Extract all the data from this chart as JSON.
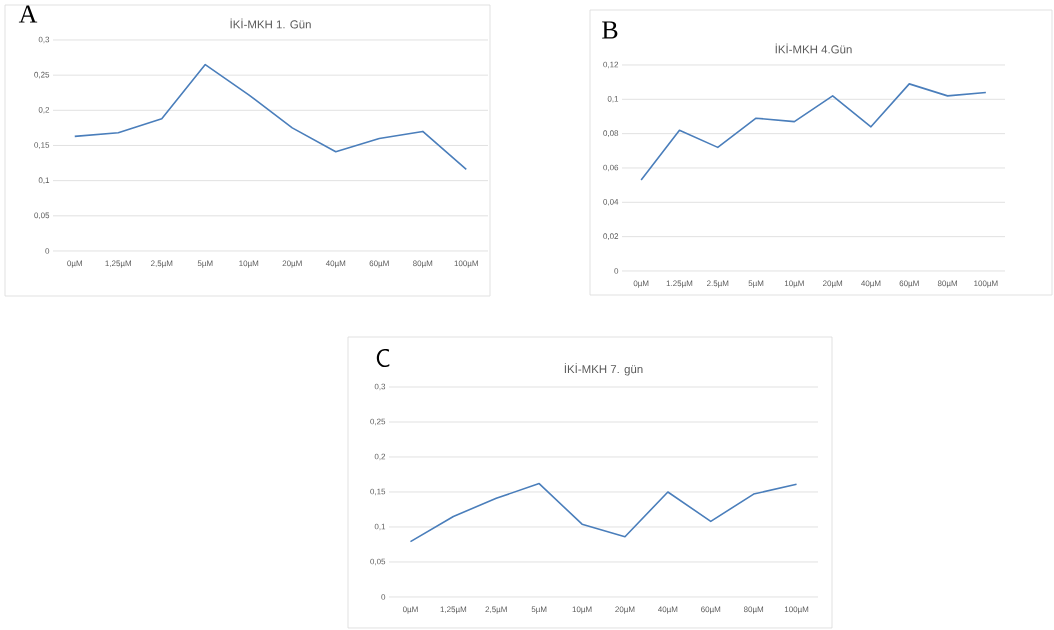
{
  "chart_data": [
    {
      "type": "line",
      "title": "İKİ-MKH 1. Gün",
      "annotations": [
        "A"
      ],
      "color": "#4a7ebb",
      "grid": "y",
      "categories": [
        "0µM",
        "1,25µM",
        "2,5µM",
        "5µM",
        "10µM",
        "20µM",
        "40µM",
        "60µM",
        "80µM",
        "100µM"
      ],
      "values": [
        0.163,
        0.168,
        0.188,
        0.265,
        0.222,
        0.175,
        0.141,
        0.16,
        0.17,
        0.116
      ],
      "ylim": [
        0,
        0.3
      ],
      "yticks": [
        {
          "value": 0,
          "label": "0"
        },
        {
          "value": 0.05,
          "label": "0,05"
        },
        {
          "value": 0.1,
          "label": "0,1"
        },
        {
          "value": 0.15,
          "label": "0,15"
        },
        {
          "value": 0.2,
          "label": "0,2"
        },
        {
          "value": 0.25,
          "label": "0,25"
        },
        {
          "value": 0.3,
          "label": "0,3"
        }
      ]
    },
    {
      "type": "line",
      "title": "İKİ-MKH 4.Gün",
      "annotations": [
        "B"
      ],
      "color": "#4a7ebb",
      "grid": "y",
      "categories": [
        "0µM",
        "1.25µM",
        "2.5µM",
        "5µM",
        "10µM",
        "20µM",
        "40µM",
        "60µM",
        "80µM",
        "100µM"
      ],
      "values": [
        0.053,
        0.082,
        0.072,
        0.089,
        0.087,
        0.102,
        0.084,
        0.109,
        0.102,
        0.104
      ],
      "ylim": [
        0,
        0.12
      ],
      "yticks": [
        {
          "value": 0,
          "label": "0"
        },
        {
          "value": 0.02,
          "label": "0,02"
        },
        {
          "value": 0.04,
          "label": "0,04"
        },
        {
          "value": 0.06,
          "label": "0,06"
        },
        {
          "value": 0.08,
          "label": "0,08"
        },
        {
          "value": 0.1,
          "label": "0,1"
        },
        {
          "value": 0.12,
          "label": "0,12"
        }
      ]
    },
    {
      "type": "line",
      "title": "İKİ-MKH 7. gün",
      "annotations": [
        "C"
      ],
      "color": "#4a7ebb",
      "grid": "y",
      "categories": [
        "0µM",
        "1,25µM",
        "2,5µM",
        "5µM",
        "10µM",
        "20µM",
        "40µM",
        "60µM",
        "80µM",
        "100µM"
      ],
      "values": [
        0.079,
        0.115,
        0.141,
        0.162,
        0.104,
        0.086,
        0.15,
        0.108,
        0.147,
        0.161
      ],
      "ylim": [
        0,
        0.3
      ],
      "yticks": [
        {
          "value": 0,
          "label": "0"
        },
        {
          "value": 0.05,
          "label": "0,05"
        },
        {
          "value": 0.1,
          "label": "0,1"
        },
        {
          "value": 0.15,
          "label": "0,15"
        },
        {
          "value": 0.2,
          "label": "0,2"
        },
        {
          "value": 0.25,
          "label": "0,25"
        },
        {
          "value": 0.3,
          "label": "0,3"
        }
      ]
    }
  ]
}
